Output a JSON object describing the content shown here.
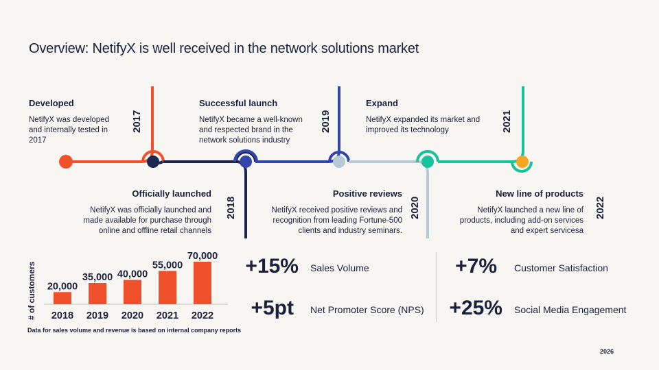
{
  "title": "Overview: NetifyX is well received in the network solutions market",
  "timeline": [
    {
      "year": "2017",
      "heading": "Developed",
      "text": "NetifyX was developed and internally tested in 2017",
      "color": "#f0502a"
    },
    {
      "year": "2018",
      "heading": "Officially launched",
      "text": "NetifyX was officially launched and made available for purchase through online and offline retail channels",
      "color": "#1b2550"
    },
    {
      "year": "2019",
      "heading": "Successful launch",
      "text": "NetifyX became a well-known and respected brand in the network solutions industry",
      "color": "#3345a8"
    },
    {
      "year": "2020",
      "heading": "Positive reviews",
      "text": "NetifyX received positive reviews and recognition from leading Fortune-500 clients and industry seminars.",
      "color": "#b8c9d6"
    },
    {
      "year": "2021",
      "heading": "Expand",
      "text": "NetifyX expanded its market and improved its technology",
      "color": "#17c29c"
    },
    {
      "year": "2022",
      "heading": "New line of products",
      "text": "NetifyX launched a new line of products, including add-on services and expert servicesa",
      "color": "#f5a623"
    }
  ],
  "chart_data": {
    "type": "bar",
    "categories": [
      "2018",
      "2019",
      "2020",
      "2021",
      "2022"
    ],
    "values": [
      20000,
      35000,
      40000,
      55000,
      70000
    ],
    "value_labels": [
      "20,000",
      "35,000",
      "40,000",
      "55,000",
      "70,000"
    ],
    "ylabel": "# of customers",
    "xlabel": "",
    "title": "",
    "ylim": [
      0,
      70000
    ],
    "color": "#f0502a",
    "grid": false
  },
  "stats": [
    {
      "value": "+15%",
      "label": "Sales Volume"
    },
    {
      "value": "+5pt",
      "label": "Net Promoter Score (NPS)"
    },
    {
      "value": "+7%",
      "label": "Customer Satisfaction"
    },
    {
      "value": "+25%",
      "label": "Social Media Engagement"
    }
  ],
  "footnote": "Data for sales volume and revenue is based on internal company reports",
  "page_number": "2026"
}
